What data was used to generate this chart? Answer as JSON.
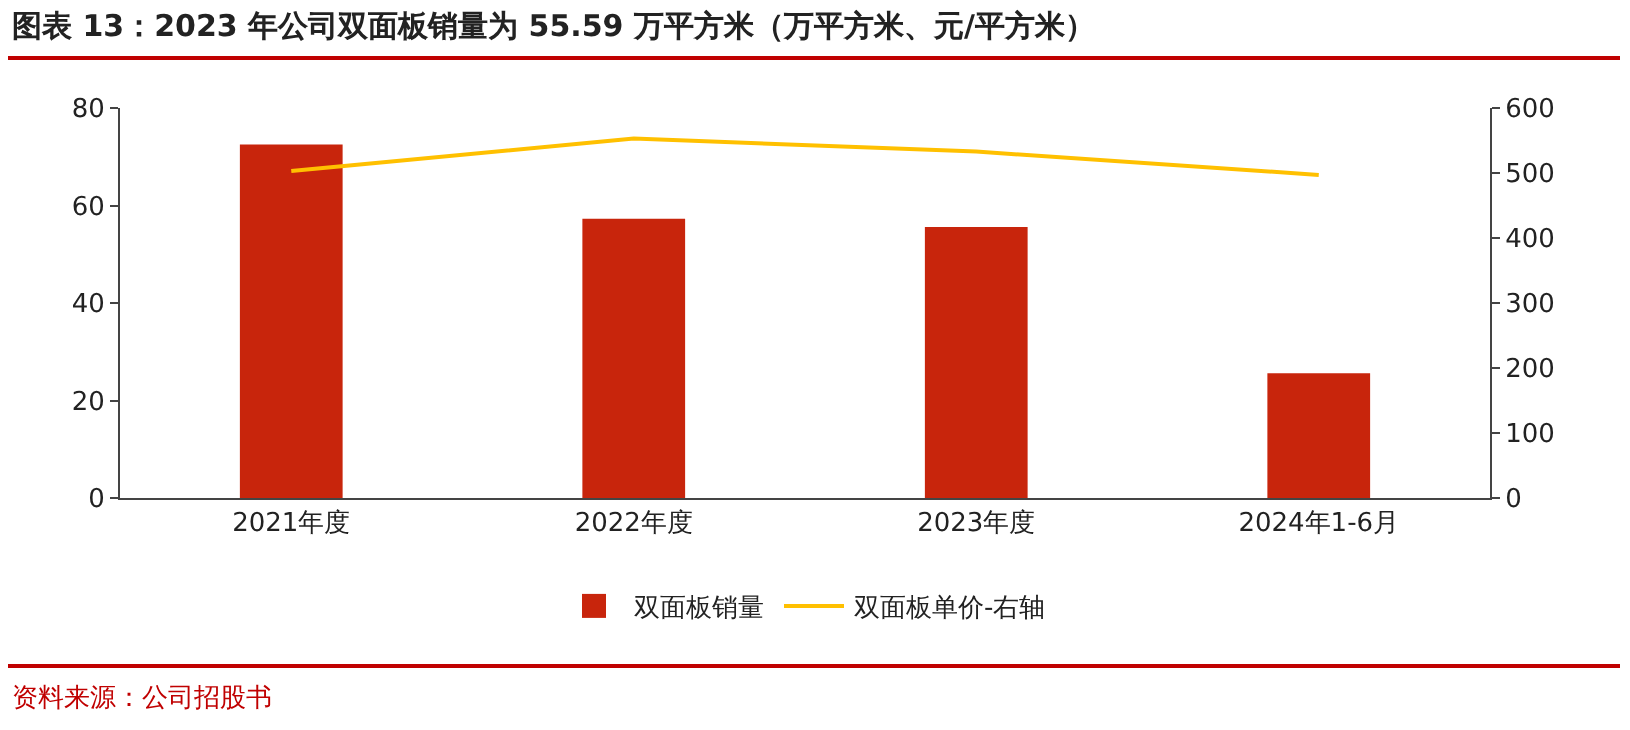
{
  "chart_data": {
    "type": "bar",
    "title": "图表 13：2023 年公司双面板销量为 55.59 万平方米（万平方米、元/平方米）",
    "categories": [
      "2021年度",
      "2022年度",
      "2023年度",
      "2024年1-6月"
    ],
    "series": [
      {
        "name": "双面板销量",
        "color": "#c8250c",
        "values": [
          72.5,
          57.3,
          55.59,
          25.6
        ]
      },
      {
        "name": "双面板单价-右轴",
        "type": "line",
        "axis": "y2",
        "color": "#ffc000",
        "values": [
          503,
          553,
          533,
          497
        ]
      }
    ],
    "ylim": [
      0,
      80
    ],
    "yticks": [
      0,
      20,
      40,
      60,
      80
    ],
    "y2lim": [
      0,
      600
    ],
    "y2ticks": [
      0,
      100,
      200,
      300,
      400,
      500,
      600
    ],
    "grid": false,
    "legend": "bottom",
    "marker": "none",
    "line_style": "solid",
    "annotations": [
      "资料来源：公司招股书"
    ]
  }
}
